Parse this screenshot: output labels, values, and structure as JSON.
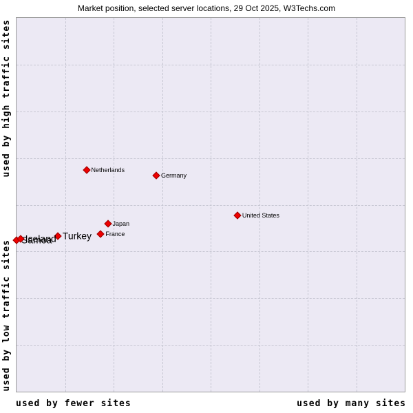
{
  "title": "Market position, selected server locations, 29 Oct 2025, W3Techs.com",
  "axes": {
    "y_top": "used by high traffic sites",
    "y_bottom": "used by low traffic sites",
    "x_left": "used by fewer sites",
    "x_right": "used by many sites"
  },
  "colors": {
    "point_fill": "#ee0000",
    "point_border": "#990000",
    "plot_background": "#ece9f4",
    "grid": "#c6c6d2",
    "plot_border": "#999999"
  },
  "chart_data": {
    "type": "scatter",
    "title": "Market position, selected server locations, 29 Oct 2025, W3Techs.com",
    "xlabel_left": "used by fewer sites",
    "xlabel_right": "used by many sites",
    "ylabel_top": "used by high traffic sites",
    "ylabel_bottom": "used by low traffic sites",
    "grid": true,
    "grid_divisions": 8,
    "axis_note": "axes are qualitative (no numeric ticks); point positions given as percent of plot area, y measured from top",
    "points": [
      {
        "label": "Netherlands",
        "x_pct": 18.0,
        "y_pct": 40.7,
        "label_size": "small"
      },
      {
        "label": "Germany",
        "x_pct": 36.0,
        "y_pct": 42.2,
        "label_size": "small"
      },
      {
        "label": "United States",
        "x_pct": 56.9,
        "y_pct": 52.8,
        "label_size": "small"
      },
      {
        "label": "Japan",
        "x_pct": 23.5,
        "y_pct": 55.0,
        "label_size": "small"
      },
      {
        "label": "France",
        "x_pct": 21.7,
        "y_pct": 57.8,
        "label_size": "small"
      },
      {
        "label": "Turkey",
        "x_pct": 10.6,
        "y_pct": 58.3,
        "label_size": "large"
      },
      {
        "label": "Samoa",
        "x_pct": 0.0,
        "y_pct": 59.4,
        "label_size": "large"
      },
      {
        "label": "Iceland",
        "x_pct": 1.0,
        "y_pct": 59.2,
        "label_size": "large"
      }
    ]
  }
}
